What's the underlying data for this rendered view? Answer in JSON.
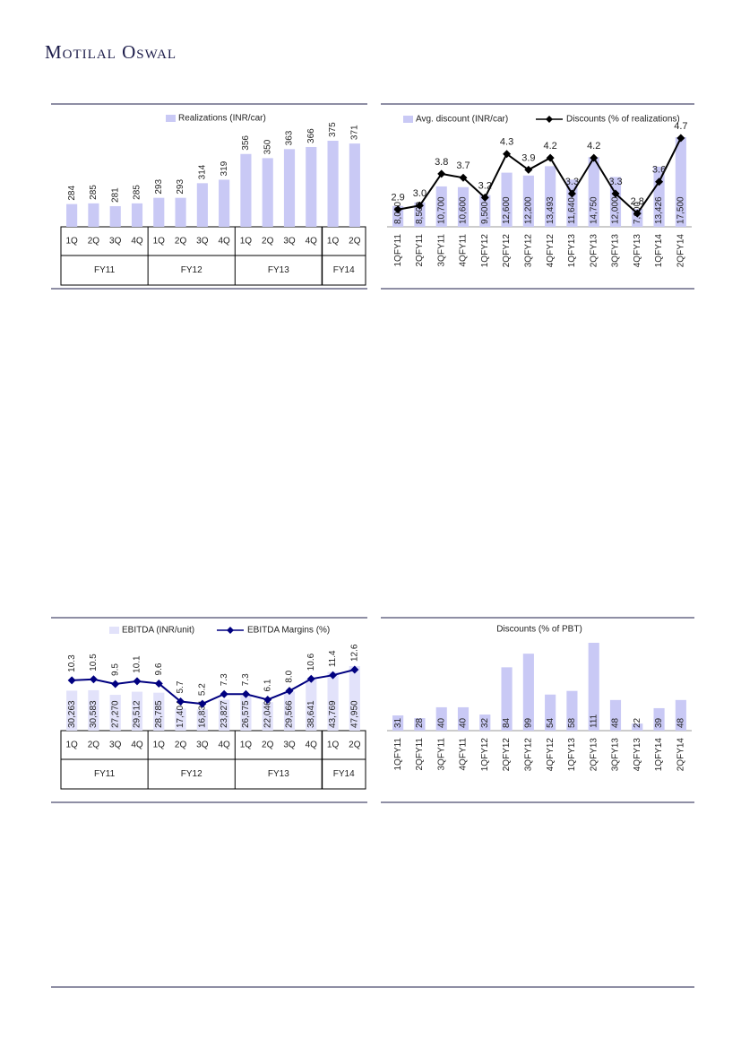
{
  "header": {
    "brand": "Motilal Oswal"
  },
  "chart_data": [
    {
      "type": "bar",
      "groups": [
        {
          "label": "FY11",
          "categories": [
            "1Q",
            "2Q",
            "3Q",
            "4Q"
          ]
        },
        {
          "label": "FY12",
          "categories": [
            "1Q",
            "2Q",
            "3Q",
            "4Q"
          ]
        },
        {
          "label": "FY13",
          "categories": [
            "1Q",
            "2Q",
            "3Q",
            "4Q"
          ]
        },
        {
          "label": "FY14",
          "categories": [
            "1Q",
            "2Q"
          ]
        }
      ],
      "series": [
        {
          "name": "Realizations (INR/car)",
          "type": "bar",
          "color": "#c9c9f5",
          "values": [
            284,
            285,
            281,
            285,
            293,
            293,
            314,
            319,
            356,
            350,
            363,
            366,
            375,
            371
          ]
        }
      ]
    },
    {
      "type": "combo",
      "categories": [
        "1QFY11",
        "2QFY11",
        "3QFY11",
        "4QFY11",
        "1QFY12",
        "2QFY12",
        "3QFY12",
        "4QFY12",
        "1QFY13",
        "2QFY13",
        "3QFY13",
        "4QFY13",
        "1QFY14",
        "2QFY14"
      ],
      "series": [
        {
          "name": "Avg. discount (INR/car)",
          "type": "bar",
          "color": "#c9c9f5",
          "values": [
            8000,
            8500,
            10700,
            10600,
            9500,
            12600,
            12200,
            13493,
            11640,
            14750,
            12000,
            7600,
            13426,
            17500
          ],
          "value_labels": [
            "8,000",
            "8,500",
            "10,700",
            "10,600",
            "9,500",
            "12,600",
            "12,200",
            "13,493",
            "11,640",
            "14,750",
            "12,000",
            "7,600",
            "13,426",
            "17,500"
          ]
        },
        {
          "name": "Discounts (% of realizations)",
          "type": "line",
          "color": "#000000",
          "values": [
            2.9,
            3.0,
            3.8,
            3.7,
            3.2,
            4.3,
            3.9,
            4.2,
            3.3,
            4.2,
            3.3,
            2.8,
            3.6,
            4.7
          ],
          "value_labels": [
            "2.9",
            "3.0",
            "3.8",
            "3.7",
            "3.2",
            "4.3",
            "3.9",
            "4.2",
            "3.3",
            "4.2",
            "3.3",
            "2.8",
            "3.6",
            "4.7"
          ]
        }
      ]
    },
    {
      "type": "combo",
      "groups": [
        {
          "label": "FY11",
          "categories": [
            "1Q",
            "2Q",
            "3Q",
            "4Q"
          ]
        },
        {
          "label": "FY12",
          "categories": [
            "1Q",
            "2Q",
            "3Q",
            "4Q"
          ]
        },
        {
          "label": "FY13",
          "categories": [
            "1Q",
            "2Q",
            "3Q",
            "4Q"
          ]
        },
        {
          "label": "FY14",
          "categories": [
            "1Q",
            "2Q"
          ]
        }
      ],
      "series": [
        {
          "name": "EBITDA (INR/unit)",
          "type": "bar",
          "color": "#e2e2fa",
          "values": [
            30263,
            30583,
            27270,
            29512,
            28785,
            17404,
            16834,
            23827,
            26575,
            22046,
            29566,
            38641,
            43769,
            47950
          ],
          "value_labels": [
            "30,263",
            "30,583",
            "27,270",
            "29,512",
            "28,785",
            "17,404",
            "16,834",
            "23,827",
            "26,575",
            "22,046",
            "29,566",
            "38,641",
            "43,769",
            "47,950"
          ]
        },
        {
          "name": "EBITDA Margins (%)",
          "type": "line",
          "color": "#000080",
          "values": [
            10.3,
            10.5,
            9.5,
            10.1,
            9.6,
            5.7,
            5.2,
            7.3,
            7.3,
            6.1,
            8.0,
            10.6,
            11.4,
            12.6
          ],
          "value_labels": [
            "10.3",
            "10.5",
            "9.5",
            "10.1",
            "9.6",
            "5.7",
            "5.2",
            "7.3",
            "7.3",
            "6.1",
            "8.0",
            "10.6",
            "11.4",
            "12.6"
          ]
        }
      ]
    },
    {
      "type": "bar",
      "title": "Discounts (% of PBT)",
      "categories": [
        "1QFY11",
        "2QFY11",
        "3QFY11",
        "4QFY11",
        "1QFY12",
        "2QFY12",
        "3QFY12",
        "4QFY12",
        "1QFY13",
        "2QFY13",
        "3QFY13",
        "4QFY13",
        "1QFY14",
        "2QFY14"
      ],
      "series": [
        {
          "type": "bar",
          "color": "#c9c9f5",
          "values": [
            31,
            28,
            40,
            40,
            32,
            84,
            99,
            54,
            58,
            111,
            48,
            22,
            39,
            48
          ]
        }
      ]
    }
  ]
}
